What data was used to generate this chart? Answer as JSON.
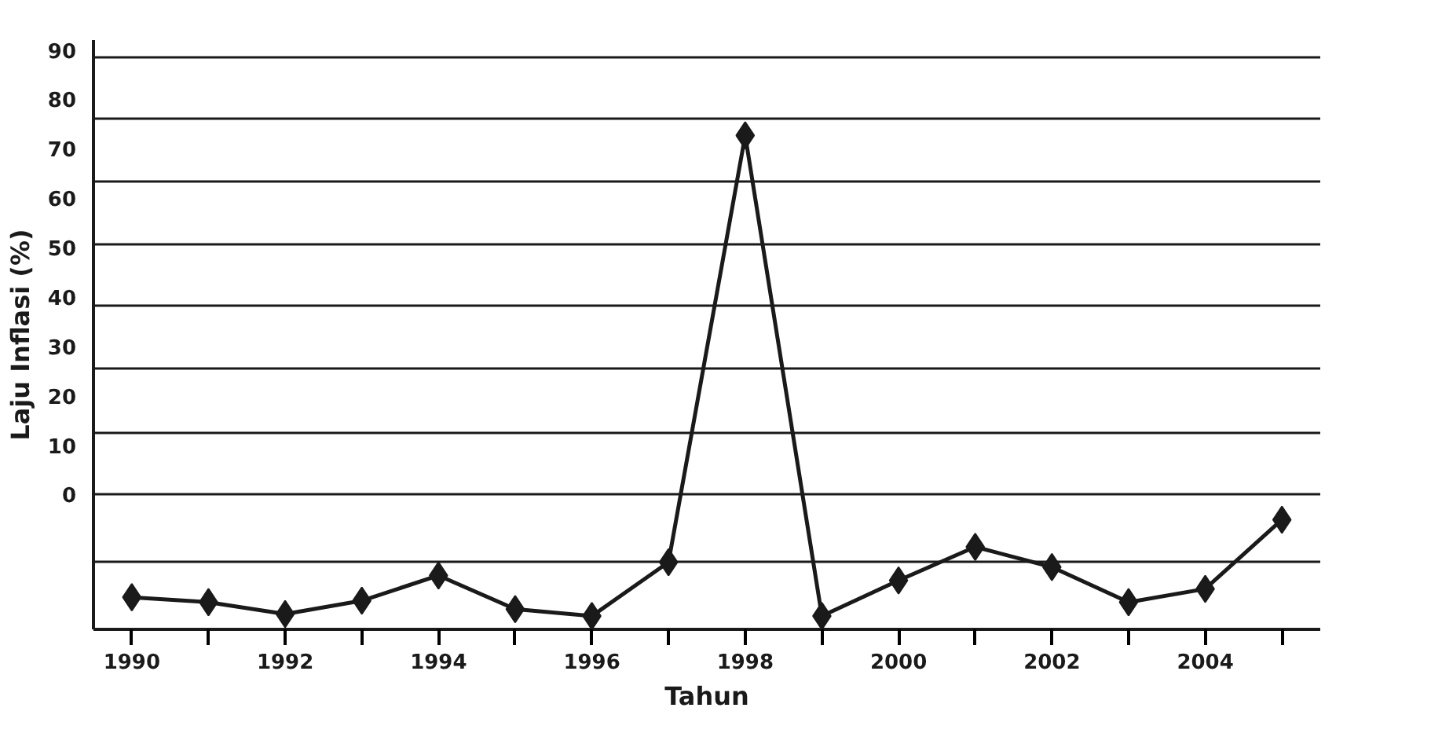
{
  "chart_data": {
    "type": "line",
    "xlabel": "Tahun",
    "ylabel": "Laju Inflasi (%)",
    "x": [
      1990,
      1991,
      1992,
      1993,
      1994,
      1995,
      1996,
      1997,
      1998,
      1999,
      2000,
      2001,
      2002,
      2003,
      2004,
      2005
    ],
    "series": [
      {
        "color": "#1a1a1a",
        "values": [
          -20.8,
          -21.8,
          -24.2,
          -21.5,
          -16.4,
          -23.2,
          -24.6,
          -13.7,
          72.7,
          -24.6,
          -17.4,
          -10.6,
          -14.7,
          -21.8,
          -19.1,
          -5.1
        ]
      }
    ],
    "xlim": [
      1989.5,
      2005.5
    ],
    "xticks": [
      1990,
      {
        "value": 1991,
        "label": null
      },
      1992,
      {
        "value": 1993,
        "label": null
      },
      1994,
      {
        "value": 1995,
        "label": null
      },
      1996,
      {
        "value": 1997,
        "label": null
      },
      1998,
      {
        "value": 1999,
        "label": null
      },
      2000,
      {
        "value": 2001,
        "label": null
      },
      2002,
      {
        "value": 2003,
        "label": null
      },
      2004,
      {
        "value": 2005,
        "label": null
      }
    ],
    "ylim": [
      -27.3,
      92
    ],
    "yticks": [
      0,
      10,
      20,
      30,
      40,
      50,
      60,
      70,
      80,
      90,
      {
        "value": -13.7,
        "label": null
      },
      {
        "value": 0.0,
        "label": null
      },
      {
        "value": 12.6,
        "label": null
      },
      {
        "value": 25.6,
        "label": null
      },
      {
        "value": 38.2,
        "label": null
      },
      {
        "value": 50.5,
        "label": null
      },
      {
        "value": 63.5,
        "label": null
      },
      {
        "value": 76.1,
        "label": null
      },
      {
        "value": 88.4,
        "label": null
      }
    ],
    "grid": "y",
    "marker": "diamond",
    "line_style": "solid"
  }
}
